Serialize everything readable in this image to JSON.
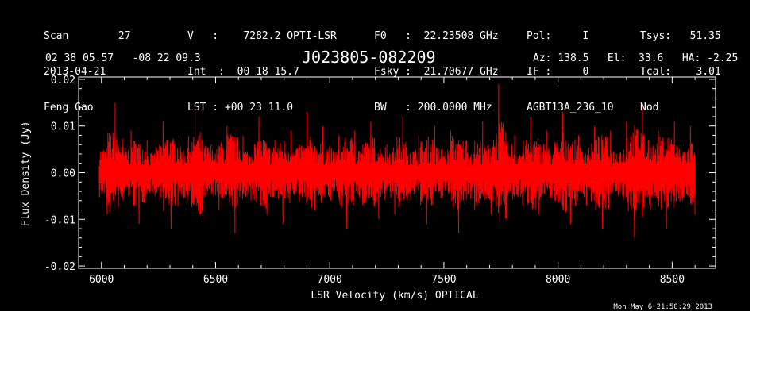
{
  "header": {
    "col1": [
      "Scan        27",
      "2013-04-21",
      "Feng Gao"
    ],
    "col2": [
      "V   :    7282.2 OPTI-LSR",
      "Int  :  00 18 15.7",
      "LST : +00 23 11.0"
    ],
    "col3": [
      "F0   :  22.23508 GHz",
      "Fsky :  21.70677 GHz",
      "BW   : 200.0000 MHz"
    ],
    "col4": [
      "Pol:     I",
      "IF :     0",
      "AGBT13A_236_10"
    ],
    "col5": [
      "Tsys:   51.35",
      "Tcal:    3.01",
      "Nod"
    ],
    "coords": "02 38 05.57   -08 22 09.3",
    "source": "J023805-082209",
    "azel": "Az: 138.5   El:  33.6   HA: -2.25",
    "timestamp": "Mon May  6 21:50:29 2013"
  },
  "colors": {
    "background": "#000000",
    "axes": "#ffffff",
    "trace": "#ff0000"
  },
  "chart_data": {
    "type": "line",
    "title": "J023805-082209",
    "xlabel": "LSR Velocity (km/s) OPTICAL",
    "ylabel": "Flux Density (Jy)",
    "xlim": [
      5900,
      8690
    ],
    "ylim": [
      -0.0205,
      0.0205
    ],
    "xticks": [
      6000,
      6500,
      7000,
      7500,
      8000,
      8500
    ],
    "xtick_labels": [
      "6000",
      "6500",
      "7000",
      "7500",
      "8000",
      "8500"
    ],
    "yticks": [
      -0.02,
      -0.01,
      0.0,
      0.01,
      0.02
    ],
    "ytick_labels": [
      "-0.02",
      "-0.01",
      "0.00",
      "0.01",
      "0.02"
    ],
    "grid": false,
    "series": [
      {
        "x": [
          5990,
          6025,
          6060,
          6095,
          6130,
          6165,
          6200,
          6235,
          6270,
          6305,
          6340,
          6375,
          6410,
          6445,
          6480,
          6515,
          6550,
          6585,
          6620,
          6655,
          6690,
          6725,
          6760,
          6795,
          6830,
          6865,
          6900,
          6935,
          6970,
          7005,
          7040,
          7075,
          7110,
          7145,
          7180,
          7215,
          7250,
          7285,
          7320,
          7355,
          7390,
          7425,
          7460,
          7495,
          7530,
          7565,
          7600,
          7635,
          7670,
          7705,
          7740,
          7775,
          7810,
          7845,
          7880,
          7915,
          7950,
          7985,
          8020,
          8055,
          8090,
          8125,
          8160,
          8195,
          8230,
          8265,
          8300,
          8335,
          8370,
          8405,
          8440,
          8475,
          8510,
          8545,
          8580,
          8600
        ],
        "y": [
          0.006,
          -0.009,
          0.015,
          -0.006,
          0.009,
          -0.011,
          0.007,
          -0.005,
          0.011,
          -0.012,
          0.008,
          -0.007,
          0.014,
          -0.01,
          0.006,
          -0.008,
          0.01,
          -0.013,
          0.008,
          -0.006,
          0.012,
          -0.009,
          0.007,
          -0.011,
          0.009,
          -0.005,
          0.013,
          -0.008,
          0.01,
          -0.006,
          0.008,
          -0.012,
          0.009,
          -0.007,
          0.011,
          -0.01,
          0.006,
          -0.009,
          0.012,
          -0.006,
          0.008,
          -0.011,
          0.01,
          -0.005,
          0.009,
          -0.013,
          0.007,
          -0.008,
          0.011,
          -0.006,
          0.019,
          -0.01,
          0.008,
          -0.007,
          0.012,
          -0.009,
          0.009,
          -0.006,
          0.013,
          -0.011,
          0.008,
          -0.007,
          0.01,
          -0.012,
          0.009,
          -0.005,
          0.011,
          -0.014,
          0.014,
          -0.008,
          0.009,
          -0.012,
          0.011,
          -0.006,
          0.01,
          -0.009
        ]
      }
    ]
  }
}
